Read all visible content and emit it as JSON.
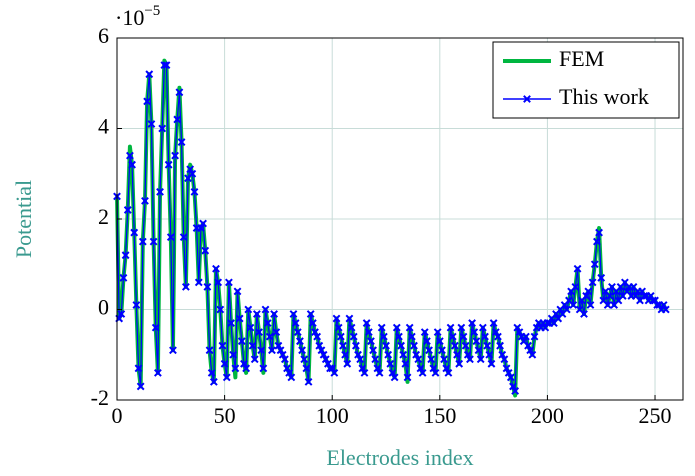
{
  "chart_data": {
    "type": "line",
    "xlabel": "Electrodes index",
    "ylabel": "Potential",
    "y_multiplier": {
      "base": "·10",
      "exponent": "−5"
    },
    "xlim": [
      0,
      263
    ],
    "xticks": [
      0,
      50,
      100,
      150,
      200,
      250
    ],
    "ylim": [
      -2,
      6
    ],
    "yticks": [
      -2,
      0,
      2,
      4,
      6
    ],
    "grid": true,
    "legend": "upper right",
    "x": [
      0,
      1,
      2,
      3,
      4,
      5,
      6,
      7,
      8,
      9,
      10,
      11,
      12,
      13,
      14,
      15,
      16,
      17,
      18,
      19,
      20,
      21,
      22,
      23,
      24,
      25,
      26,
      27,
      28,
      29,
      30,
      31,
      32,
      33,
      34,
      35,
      36,
      37,
      38,
      39,
      40,
      41,
      42,
      43,
      44,
      45,
      46,
      47,
      48,
      49,
      50,
      51,
      52,
      53,
      54,
      55,
      56,
      57,
      58,
      59,
      60,
      61,
      62,
      63,
      64,
      65,
      66,
      67,
      68,
      69,
      70,
      71,
      72,
      73,
      74,
      75,
      76,
      77,
      78,
      79,
      80,
      81,
      82,
      83,
      84,
      85,
      86,
      87,
      88,
      89,
      90,
      91,
      92,
      93,
      94,
      95,
      96,
      97,
      98,
      99,
      100,
      101,
      102,
      103,
      104,
      105,
      106,
      107,
      108,
      109,
      110,
      111,
      112,
      113,
      114,
      115,
      116,
      117,
      118,
      119,
      120,
      121,
      122,
      123,
      124,
      125,
      126,
      127,
      128,
      129,
      130,
      131,
      132,
      133,
      134,
      135,
      136,
      137,
      138,
      139,
      140,
      141,
      142,
      143,
      144,
      145,
      146,
      147,
      148,
      149,
      150,
      151,
      152,
      153,
      154,
      155,
      156,
      157,
      158,
      159,
      160,
      161,
      162,
      163,
      164,
      165,
      166,
      167,
      168,
      169,
      170,
      171,
      172,
      173,
      174,
      175,
      176,
      177,
      178,
      179,
      180,
      181,
      182,
      183,
      184,
      185,
      186,
      187,
      188,
      189,
      190,
      191,
      192,
      193,
      194,
      195,
      196,
      197,
      198,
      199,
      200,
      201,
      202,
      203,
      204,
      205,
      206,
      207,
      208,
      209,
      210,
      211,
      212,
      213,
      214,
      215,
      216,
      217,
      218,
      219,
      220,
      221,
      222,
      223,
      224,
      225,
      226,
      227,
      228,
      229,
      230,
      231,
      232,
      233,
      234,
      235,
      236,
      237,
      238,
      239,
      240,
      241,
      242,
      243,
      244,
      245,
      246,
      247,
      248,
      249,
      250,
      251,
      252,
      253,
      254,
      255
    ],
    "series": [
      {
        "name": "FEM",
        "color": "#00b640",
        "marker": false,
        "values": [
          2.5,
          -0.2,
          -0.1,
          0.7,
          1.2,
          2.2,
          3.6,
          3.2,
          1.7,
          0.1,
          -1.3,
          -1.7,
          1.5,
          2.4,
          4.6,
          5.2,
          4.1,
          1.5,
          -0.4,
          -1.4,
          2.6,
          4.0,
          5.5,
          5.4,
          3.2,
          1.6,
          -0.9,
          3.4,
          4.2,
          4.9,
          3.7,
          1.6,
          0.5,
          2.9,
          3.2,
          3.0,
          2.6,
          1.8,
          0.6,
          1.8,
          1.9,
          1.3,
          0.5,
          -0.9,
          -1.4,
          -1.6,
          0.9,
          0.6,
          0.0,
          -0.8,
          -1.2,
          -1.5,
          0.6,
          -0.3,
          -1.0,
          -1.5,
          0.4,
          -0.2,
          -0.7,
          -1.2,
          -1.4,
          0.0,
          -0.4,
          -0.8,
          -1.1,
          -0.1,
          -0.5,
          -0.9,
          -1.4,
          0.0,
          -0.3,
          -0.6,
          -0.9,
          -0.1,
          -0.5,
          -0.8,
          -0.9,
          -1.0,
          -1.1,
          -1.3,
          -1.4,
          -1.5,
          -0.1,
          -0.3,
          -0.5,
          -0.7,
          -0.9,
          -1.1,
          -1.3,
          -1.6,
          -0.1,
          -0.3,
          -0.5,
          -0.6,
          -0.8,
          -0.9,
          -1.0,
          -1.1,
          -1.2,
          -1.3,
          -1.3,
          -1.4,
          -0.2,
          -0.4,
          -0.6,
          -0.8,
          -1.0,
          -1.2,
          -0.2,
          -0.4,
          -0.6,
          -0.8,
          -1.0,
          -1.1,
          -1.3,
          -1.4,
          -0.3,
          -0.5,
          -0.7,
          -0.9,
          -1.1,
          -1.3,
          -1.4,
          -0.4,
          -0.6,
          -0.8,
          -1.0,
          -1.2,
          -1.4,
          -1.5,
          -0.4,
          -0.6,
          -0.8,
          -1.0,
          -1.2,
          -1.6,
          -0.4,
          -0.6,
          -0.8,
          -1.0,
          -1.1,
          -1.3,
          -1.4,
          -0.5,
          -0.7,
          -0.9,
          -1.1,
          -1.3,
          -1.4,
          -0.5,
          -0.7,
          -0.9,
          -1.1,
          -1.3,
          -1.4,
          -0.4,
          -0.6,
          -0.8,
          -1.0,
          -1.2,
          -0.4,
          -0.6,
          -0.8,
          -1.0,
          -1.1,
          -0.3,
          -0.5,
          -0.7,
          -0.9,
          -1.1,
          -0.4,
          -0.6,
          -0.8,
          -1.0,
          -1.2,
          -0.3,
          -0.5,
          -0.6,
          -0.8,
          -1.0,
          -1.1,
          -1.3,
          -1.4,
          -1.5,
          -1.7,
          -1.9,
          -0.4,
          -0.5,
          -0.6,
          -0.7,
          -0.6,
          -0.8,
          -0.9,
          -1.0,
          -0.6,
          -0.4,
          -0.3,
          -0.4,
          -0.3,
          -0.4,
          -0.3,
          -0.3,
          -0.2,
          -0.3,
          -0.1,
          -0.2,
          0.0,
          -0.1,
          0.1,
          0.0,
          0.2,
          0.4,
          0.1,
          0.5,
          0.9,
          0.0,
          0.2,
          -0.1,
          0.3,
          0.4,
          0.1,
          0.6,
          1.0,
          1.5,
          1.8,
          0.7,
          0.2,
          0.4,
          0.1,
          0.3,
          0.5,
          0.1,
          0.4,
          0.2,
          0.5,
          0.3,
          0.6,
          0.4,
          0.5,
          0.3,
          0.5,
          0.3,
          0.4,
          0.2,
          0.4,
          0.3,
          0.3,
          0.2,
          0.3,
          0.2,
          0.2,
          0.1,
          0.1,
          0.0,
          0.1,
          0.0
        ]
      },
      {
        "name": "This work",
        "color": "#0000ff",
        "marker": true,
        "values": [
          2.5,
          -0.2,
          -0.1,
          0.7,
          1.2,
          2.2,
          3.4,
          3.2,
          1.7,
          0.1,
          -1.3,
          -1.7,
          1.5,
          2.4,
          4.6,
          5.2,
          4.1,
          1.5,
          -0.4,
          -1.4,
          2.6,
          4.0,
          5.4,
          5.4,
          3.2,
          1.6,
          -0.9,
          3.4,
          4.2,
          4.8,
          3.7,
          1.6,
          0.5,
          2.9,
          3.1,
          3.0,
          2.6,
          1.8,
          0.6,
          1.8,
          1.9,
          1.3,
          0.5,
          -0.9,
          -1.4,
          -1.6,
          0.9,
          0.6,
          0.0,
          -0.8,
          -1.2,
          -1.5,
          0.6,
          -0.3,
          -1.0,
          -1.3,
          0.4,
          -0.2,
          -0.7,
          -1.2,
          -1.3,
          0.0,
          -0.4,
          -0.8,
          -1.1,
          -0.1,
          -0.5,
          -0.9,
          -1.3,
          0.0,
          -0.3,
          -0.6,
          -0.9,
          -0.1,
          -0.5,
          -0.8,
          -0.9,
          -1.0,
          -1.1,
          -1.3,
          -1.4,
          -1.5,
          -0.1,
          -0.3,
          -0.5,
          -0.7,
          -0.9,
          -1.1,
          -1.3,
          -1.6,
          -0.1,
          -0.3,
          -0.5,
          -0.6,
          -0.8,
          -0.9,
          -1.0,
          -1.1,
          -1.2,
          -1.3,
          -1.3,
          -1.4,
          -0.2,
          -0.4,
          -0.6,
          -0.8,
          -1.0,
          -1.2,
          -0.2,
          -0.4,
          -0.6,
          -0.8,
          -1.0,
          -1.1,
          -1.3,
          -1.4,
          -0.3,
          -0.5,
          -0.7,
          -0.9,
          -1.1,
          -1.3,
          -1.4,
          -0.4,
          -0.6,
          -0.8,
          -1.0,
          -1.2,
          -1.4,
          -1.5,
          -0.4,
          -0.6,
          -0.8,
          -1.0,
          -1.2,
          -1.5,
          -0.4,
          -0.6,
          -0.8,
          -1.0,
          -1.1,
          -1.3,
          -1.4,
          -0.5,
          -0.7,
          -0.9,
          -1.1,
          -1.3,
          -1.4,
          -0.5,
          -0.7,
          -0.9,
          -1.1,
          -1.3,
          -1.4,
          -0.4,
          -0.6,
          -0.8,
          -1.0,
          -1.2,
          -0.4,
          -0.6,
          -0.8,
          -1.0,
          -1.1,
          -0.3,
          -0.5,
          -0.7,
          -0.9,
          -1.1,
          -0.4,
          -0.6,
          -0.8,
          -1.0,
          -1.2,
          -0.3,
          -0.5,
          -0.6,
          -0.8,
          -1.0,
          -1.1,
          -1.3,
          -1.4,
          -1.5,
          -1.7,
          -1.8,
          -0.4,
          -0.5,
          -0.6,
          -0.7,
          -0.6,
          -0.8,
          -0.9,
          -1.0,
          -0.6,
          -0.4,
          -0.3,
          -0.4,
          -0.3,
          -0.4,
          -0.3,
          -0.3,
          -0.2,
          -0.3,
          -0.1,
          -0.2,
          0.0,
          -0.1,
          0.1,
          0.0,
          0.2,
          0.4,
          0.1,
          0.5,
          0.9,
          0.0,
          0.2,
          -0.1,
          0.3,
          0.4,
          0.1,
          0.6,
          1.0,
          1.5,
          1.7,
          0.7,
          0.2,
          0.4,
          0.1,
          0.3,
          0.5,
          0.1,
          0.4,
          0.2,
          0.5,
          0.3,
          0.6,
          0.4,
          0.5,
          0.3,
          0.5,
          0.3,
          0.4,
          0.2,
          0.4,
          0.3,
          0.3,
          0.2,
          0.3,
          0.2,
          0.2,
          0.1,
          0.1,
          0.0,
          0.1,
          0.0
        ]
      }
    ]
  }
}
